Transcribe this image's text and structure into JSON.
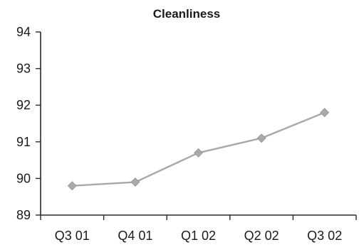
{
  "chart_data": {
    "type": "line",
    "title": "Cleanliness",
    "xlabel": "",
    "ylabel": "",
    "categories": [
      "Q3 01",
      "Q4 01",
      "Q1 02",
      "Q2 02",
      "Q3 02"
    ],
    "series": [
      {
        "values": [
          89.8,
          89.9,
          90.7,
          91.1,
          91.8
        ],
        "color": "#a9a9a9",
        "marker": "diamond"
      }
    ],
    "ylim": [
      89,
      94
    ],
    "yticks": [
      89,
      90,
      91,
      92,
      93,
      94
    ],
    "grid": false,
    "legend": "none"
  }
}
